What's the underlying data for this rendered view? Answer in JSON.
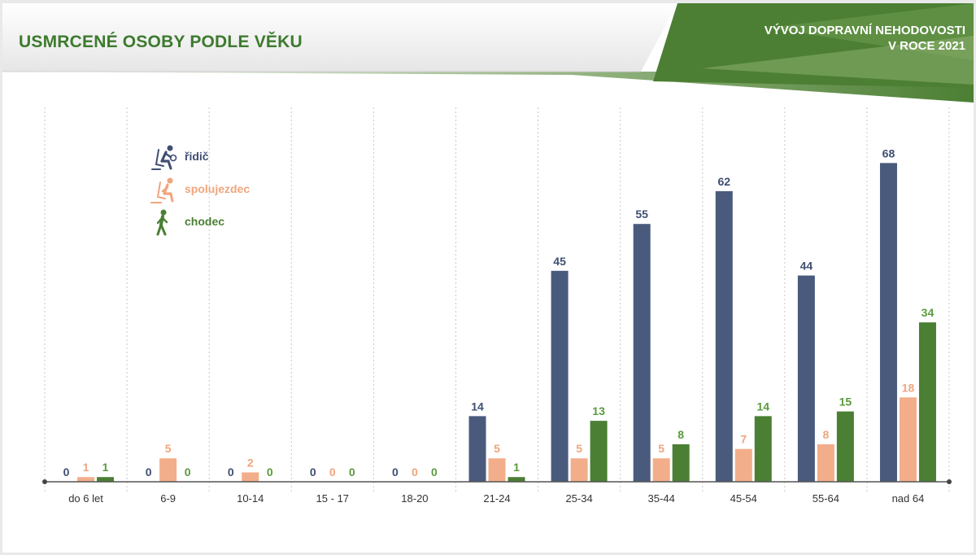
{
  "header": {
    "title": "USMRCENÉ OSOBY PODLE VĚKU",
    "subtitle_line1": "VÝVOJ DOPRAVNÍ NEHODOVOSTI",
    "subtitle_line2": "V ROCE 2021"
  },
  "colors": {
    "ridic": "#4a5a7c",
    "spolujezdec": "#f2ae8a",
    "chodec": "#4a7f34",
    "label_ridic": "#3f4e72",
    "label_spolujezdec": "#f0a57d",
    "label_chodec": "#5a9a3c",
    "title_green": "#3d7a2e",
    "header_green": "#4c7f33"
  },
  "legend": [
    {
      "name": "řidič",
      "icon": "driver-icon"
    },
    {
      "name": "spolujezdec",
      "icon": "passenger-icon"
    },
    {
      "name": "chodec",
      "icon": "pedestrian-icon"
    }
  ],
  "chart_data": {
    "type": "bar",
    "categories": [
      "do 6 let",
      "6-9",
      "10-14",
      "15 - 17",
      "18-20",
      "21-24",
      "25-34",
      "35-44",
      "45-54",
      "55-64",
      "nad 64"
    ],
    "series": [
      {
        "name": "řidič",
        "values": [
          0,
          0,
          0,
          0,
          0,
          14,
          45,
          55,
          62,
          44,
          68
        ]
      },
      {
        "name": "spolujezdec",
        "values": [
          1,
          5,
          2,
          0,
          0,
          5,
          5,
          5,
          7,
          8,
          18
        ]
      },
      {
        "name": "chodec",
        "values": [
          1,
          0,
          0,
          0,
          0,
          1,
          13,
          8,
          14,
          15,
          34
        ]
      }
    ],
    "ylim": [
      0,
      70
    ],
    "grid": "vertical dashed separators",
    "legend_position": "top-left"
  }
}
